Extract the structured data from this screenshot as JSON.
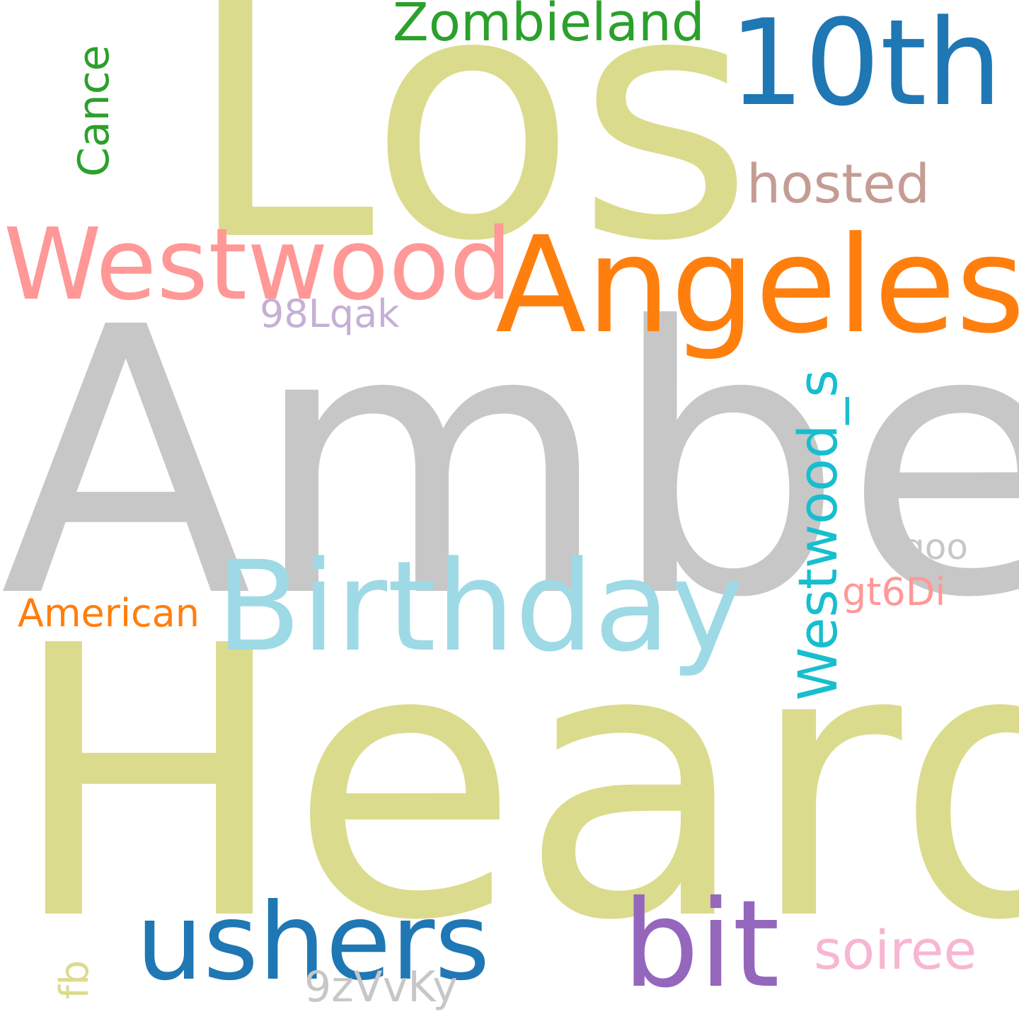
{
  "words": {
    "amber": {
      "text": "Amber",
      "color": "#c7c7c7"
    },
    "heard": {
      "text": "Heard",
      "color": "#dbdb8d"
    },
    "los": {
      "text": "Los",
      "color": "#dbdb8d"
    },
    "tenth": {
      "text": "10th",
      "color": "#1f77b4"
    },
    "angeles": {
      "text": "Angeles",
      "color": "#ff7f0e"
    },
    "westwood": {
      "text": "Westwood",
      "color": "#ff9896"
    },
    "birthday": {
      "text": "Birthday",
      "color": "#9edae5"
    },
    "ushers": {
      "text": "ushers",
      "color": "#1f77b4"
    },
    "bit": {
      "text": "bit",
      "color": "#9467bd"
    },
    "zombieland": {
      "text": "Zombieland",
      "color": "#2ca02c"
    },
    "hosted": {
      "text": "hosted",
      "color": "#c49c94"
    },
    "american": {
      "text": "American",
      "color": "#ff7f0e"
    },
    "code_98lqak": {
      "text": "98Lqak",
      "color": "#c5b0d5"
    },
    "goo": {
      "text": "goo",
      "color": "#c7c7c7"
    },
    "gt6di": {
      "text": "gt6Di",
      "color": "#ff9896"
    },
    "soiree": {
      "text": "soiree",
      "color": "#f7b6d2"
    },
    "code_9zvvky": {
      "text": "9zVvKy",
      "color": "#c7c7c7"
    },
    "cance": {
      "text": "Cance",
      "color": "#2ca02c"
    },
    "westwood_s": {
      "text": "Westwood_s",
      "color": "#17becf"
    },
    "fb": {
      "text": "fb",
      "color": "#dbdb8d"
    }
  }
}
